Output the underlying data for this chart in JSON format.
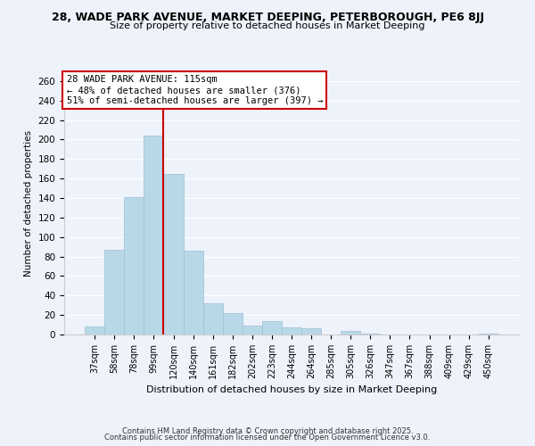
{
  "title": "28, WADE PARK AVENUE, MARKET DEEPING, PETERBOROUGH, PE6 8JJ",
  "subtitle": "Size of property relative to detached houses in Market Deeping",
  "xlabel": "Distribution of detached houses by size in Market Deeping",
  "ylabel": "Number of detached properties",
  "bar_color": "#b8d8e8",
  "bar_edge_color": "#9ac0d5",
  "background_color": "#eef2fb",
  "grid_color": "#ffffff",
  "categories": [
    "37sqm",
    "58sqm",
    "78sqm",
    "99sqm",
    "120sqm",
    "140sqm",
    "161sqm",
    "182sqm",
    "202sqm",
    "223sqm",
    "244sqm",
    "264sqm",
    "285sqm",
    "305sqm",
    "326sqm",
    "347sqm",
    "367sqm",
    "388sqm",
    "409sqm",
    "429sqm",
    "450sqm"
  ],
  "values": [
    8,
    87,
    141,
    204,
    165,
    86,
    32,
    22,
    9,
    14,
    7,
    6,
    0,
    4,
    1,
    0,
    0,
    0,
    0,
    0,
    1
  ],
  "ylim": [
    0,
    270
  ],
  "yticks": [
    0,
    20,
    40,
    60,
    80,
    100,
    120,
    140,
    160,
    180,
    200,
    220,
    240,
    260
  ],
  "vline_color": "#cc0000",
  "annotation_title": "28 WADE PARK AVENUE: 115sqm",
  "annotation_line1": "← 48% of detached houses are smaller (376)",
  "annotation_line2": "51% of semi-detached houses are larger (397) →",
  "annotation_box_color": "#ffffff",
  "annotation_box_edge": "#cc0000",
  "footer1": "Contains HM Land Registry data © Crown copyright and database right 2025.",
  "footer2": "Contains public sector information licensed under the Open Government Licence v3.0."
}
